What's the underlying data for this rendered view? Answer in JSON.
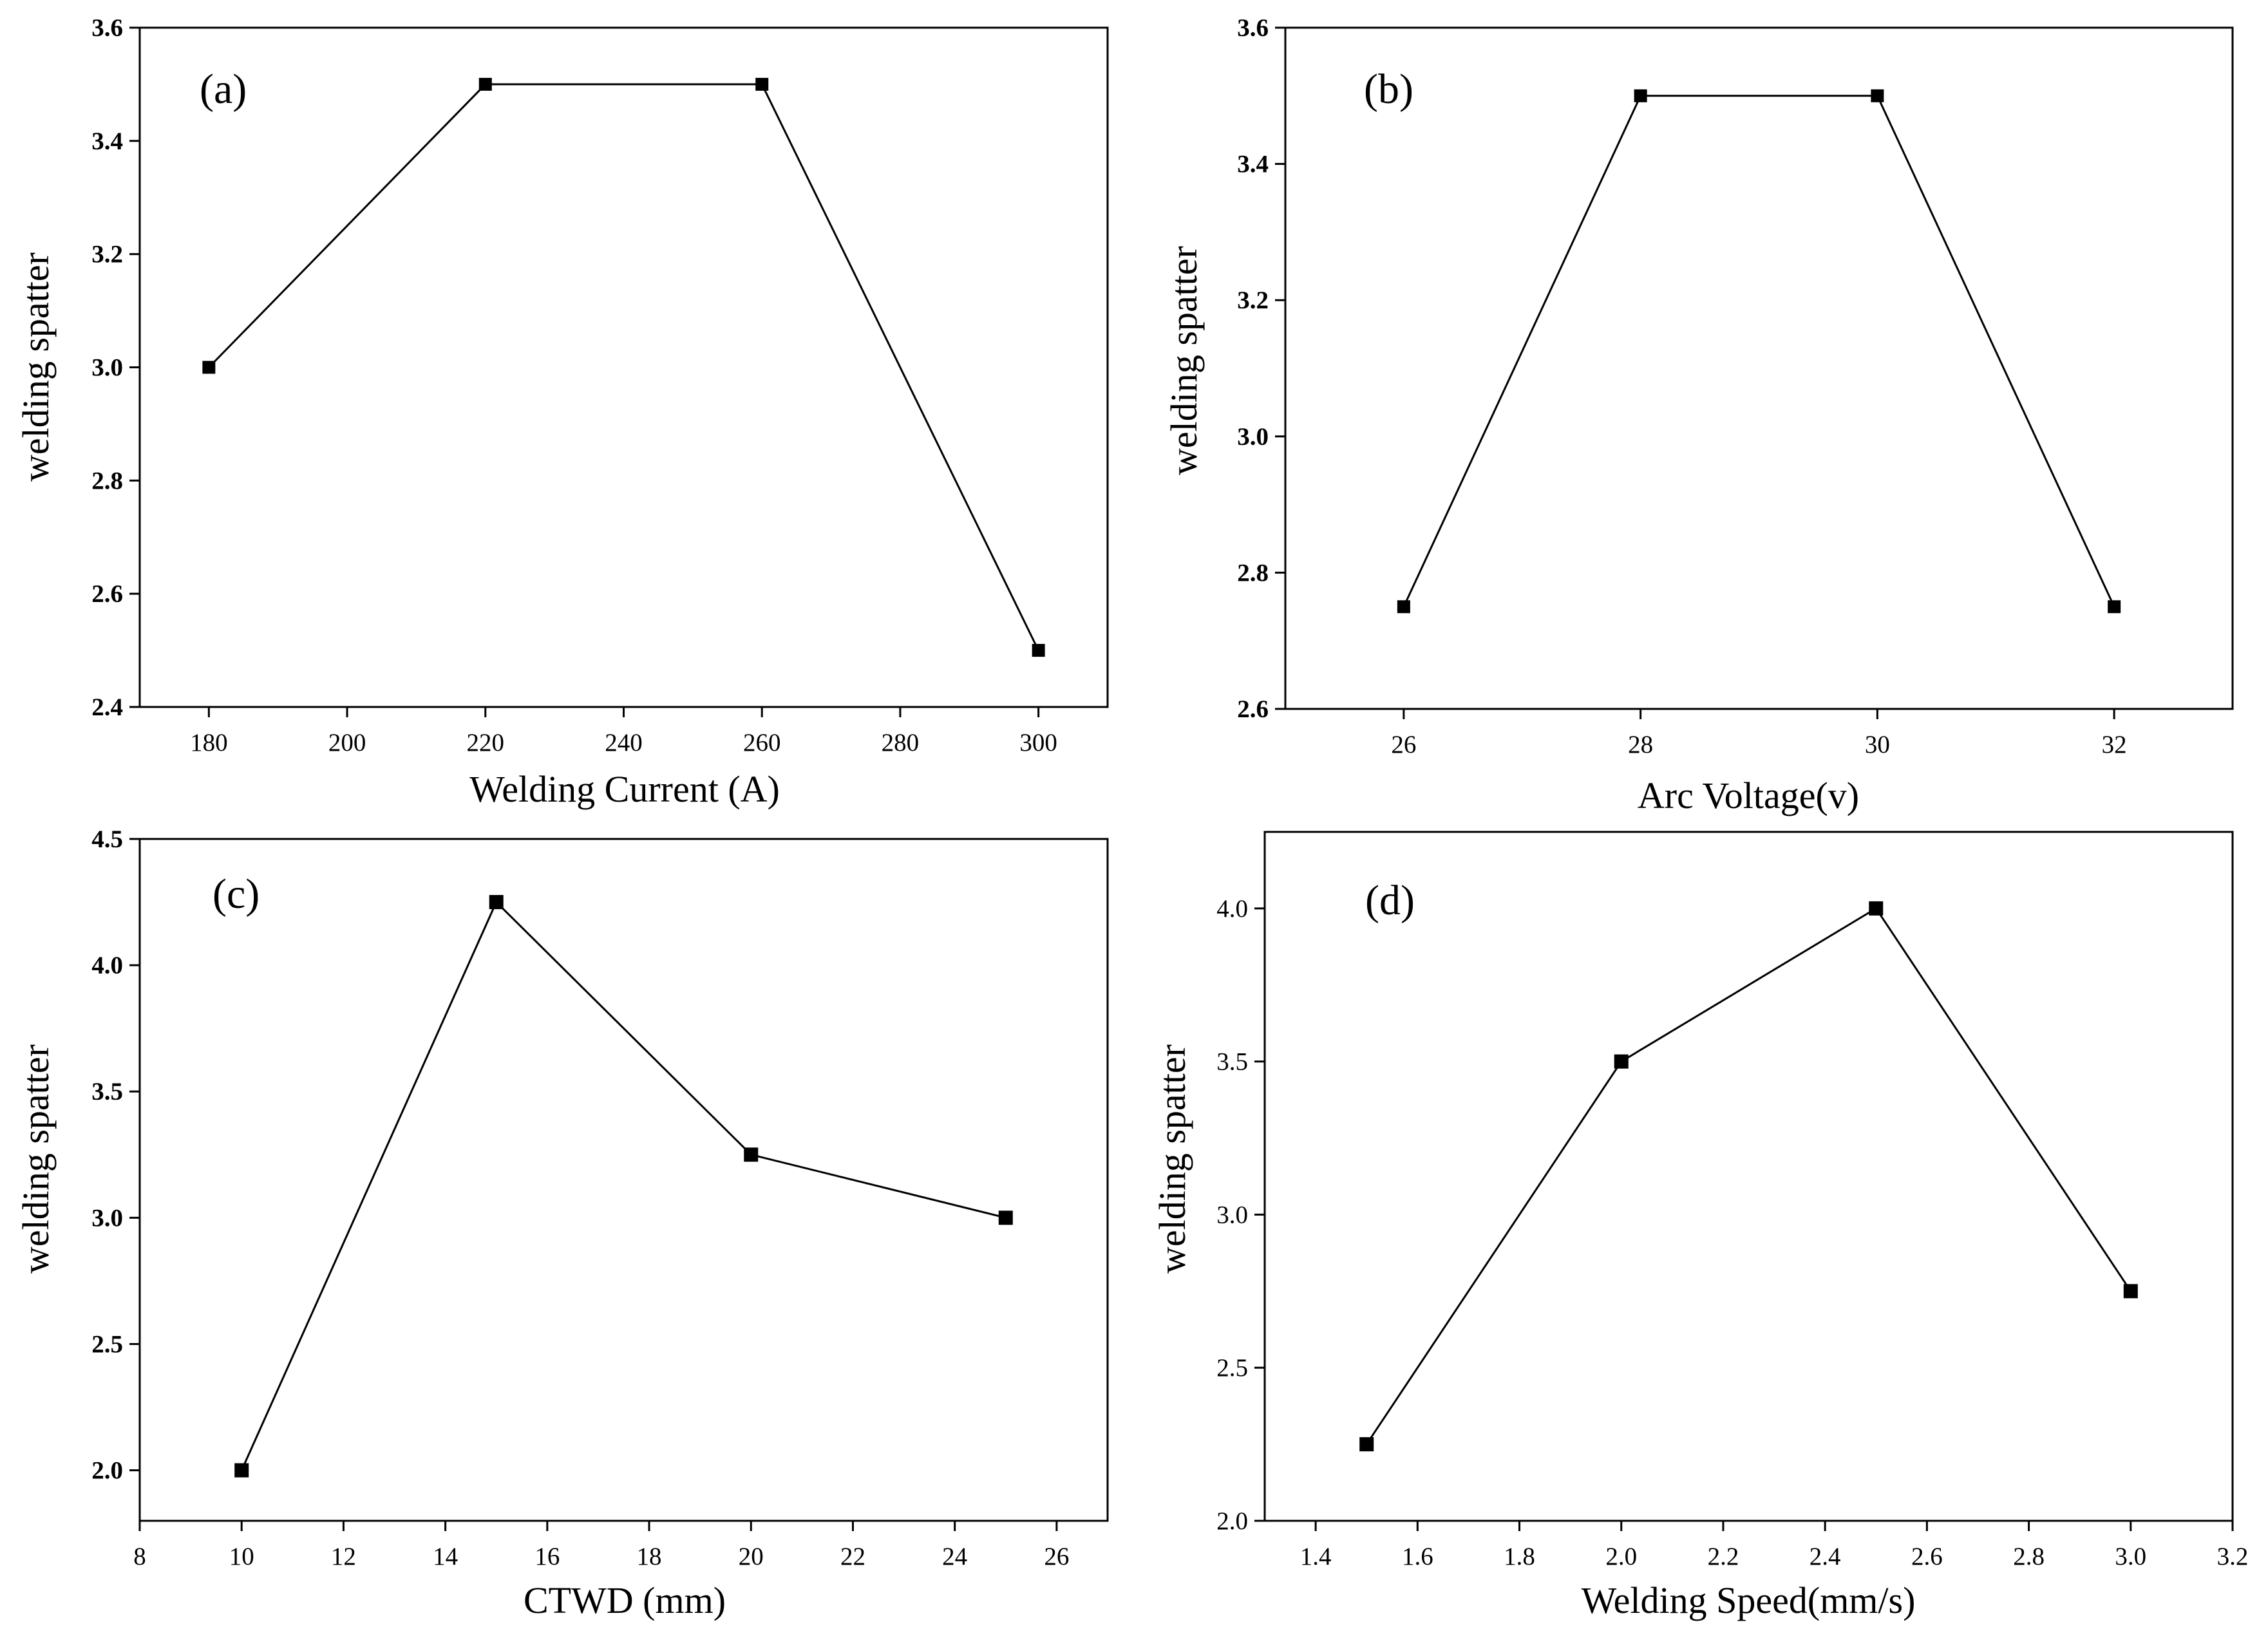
{
  "chart_data": [
    {
      "type": "line",
      "panel_label": "(a)",
      "xlabel": "Welding Current  (A)",
      "ylabel": "welding spatter",
      "x": [
        180,
        220,
        260,
        300
      ],
      "y": [
        3.0,
        3.5,
        3.5,
        2.5
      ],
      "xlim": [
        170,
        310
      ],
      "ylim": [
        2.4,
        3.6
      ],
      "xticks": [
        "180",
        "200",
        "220",
        "240",
        "260",
        "280",
        "300"
      ],
      "yticks": [
        "2.4",
        "2.6",
        "2.8",
        "3.0",
        "3.2",
        "3.4",
        "3.6"
      ],
      "marker": "square",
      "grid": false
    },
    {
      "type": "line",
      "panel_label": "(b)",
      "xlabel": "Arc  Voltage(v)",
      "ylabel": "welding spatter",
      "x": [
        26,
        28,
        30,
        32
      ],
      "y": [
        2.75,
        3.5,
        3.5,
        2.75
      ],
      "xlim": [
        25,
        33
      ],
      "ylim": [
        2.6,
        3.6
      ],
      "xticks": [
        "26",
        "28",
        "30",
        "32"
      ],
      "yticks": [
        "2.6",
        "2.8",
        "3.0",
        "3.2",
        "3.4",
        "3.6"
      ],
      "marker": "square",
      "grid": false
    },
    {
      "type": "line",
      "panel_label": "(c)",
      "xlabel": "CTWD (mm)",
      "ylabel": "welding spatter",
      "x": [
        10,
        15,
        20,
        25
      ],
      "y": [
        2.0,
        4.25,
        3.25,
        3.0
      ],
      "xlim": [
        8,
        27
      ],
      "ylim": [
        1.8,
        4.5
      ],
      "xticks": [
        "8",
        "10",
        "12",
        "14",
        "16",
        "18",
        "20",
        "22",
        "24",
        "26"
      ],
      "yticks": [
        "2.0",
        "2.5",
        "3.0",
        "3.5",
        "4.0",
        "4.5"
      ],
      "marker": "square",
      "grid": false
    },
    {
      "type": "line",
      "panel_label": "(d)",
      "xlabel": "Welding Speed(mm/s)",
      "ylabel": "welding spatter",
      "x": [
        1.5,
        2.0,
        2.5,
        3.0
      ],
      "y": [
        2.25,
        3.5,
        4.0,
        2.75
      ],
      "xlim": [
        1.3,
        3.2
      ],
      "ylim": [
        2.0,
        4.25
      ],
      "xticks": [
        "1.4",
        "1.6",
        "1.8",
        "2.0",
        "2.2",
        "2.4",
        "2.6",
        "2.8",
        "3.0",
        "3.2"
      ],
      "yticks": [
        "2.0",
        "2.5",
        "3.0",
        "3.5",
        "4.0"
      ],
      "marker": "square",
      "grid": false
    }
  ]
}
